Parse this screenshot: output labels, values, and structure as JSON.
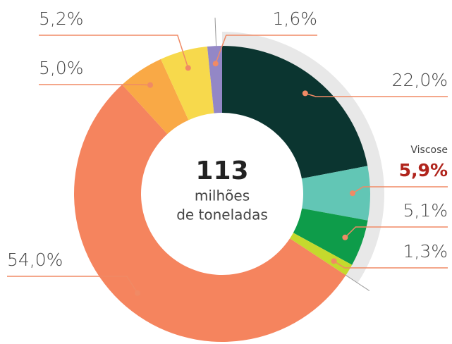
{
  "chart_data": {
    "type": "donut",
    "values": [
      22.0,
      5.9,
      5.1,
      1.3,
      54.0,
      5.0,
      5.2,
      1.6
    ],
    "value_labels": [
      "22,0%",
      "5,9%",
      "5,1%",
      "1,3%",
      "54,0%",
      "5,0%",
      "5,2%",
      "1,6%"
    ],
    "colors": [
      "#0b3530",
      "#62c6b5",
      "#0e9c4a",
      "#c5d92d",
      "#f5845e",
      "#f9a946",
      "#f7d94c",
      "#9387c6"
    ],
    "annotation": "Viscose",
    "total": 113,
    "total_unit": [
      "milhões",
      "de toneladas"
    ]
  }
}
